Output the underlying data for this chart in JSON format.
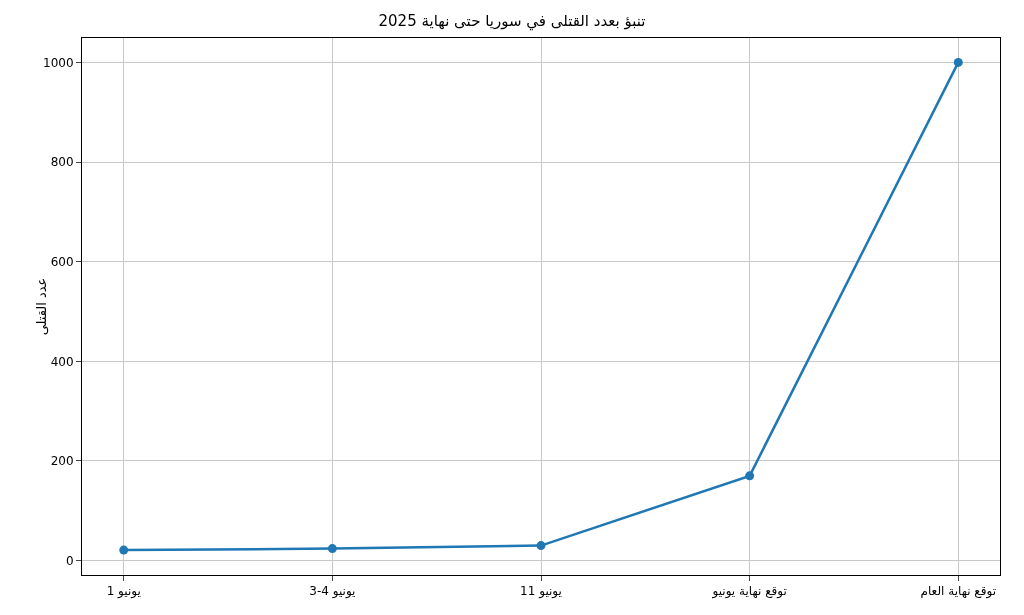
{
  "chart_data": {
    "type": "line",
    "title": "تنبؤ بعدد القتلى في سوريا حتى نهاية 2025",
    "ylabel": "عدد القتلى",
    "categories": [
      "1 يونيو",
      "3-4 يونيو",
      "11 يونيو",
      "توقع نهاية يونيو",
      "توقع نهاية العام"
    ],
    "series": [
      {
        "color": "#1f77b4",
        "values": [
          21,
          24,
          30,
          170,
          1000
        ]
      }
    ],
    "ylim": [
      -29,
      1049
    ],
    "yticks": [
      0,
      200,
      400,
      600,
      800,
      1000
    ],
    "grid": true,
    "marker": "circle",
    "line_style": "solid"
  }
}
